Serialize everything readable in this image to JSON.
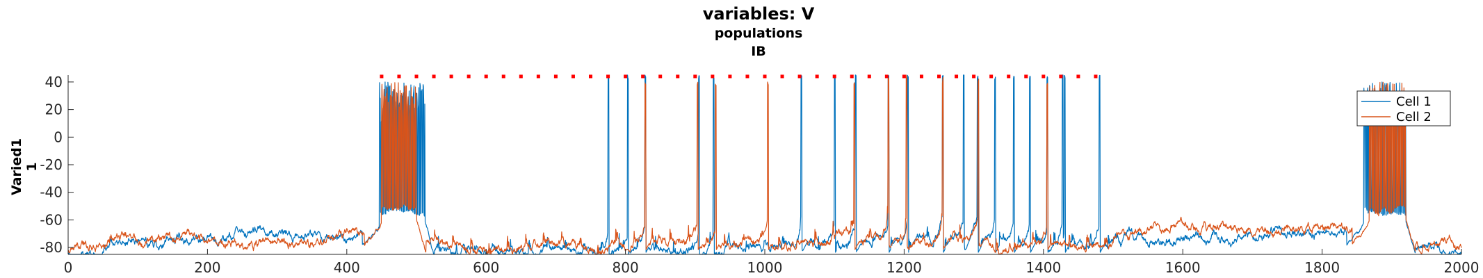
{
  "chart_data": {
    "type": "line",
    "title": "variables: V",
    "subtitle_lines": [
      "populations",
      "IB"
    ],
    "ylabel_lines": [
      "Varied1",
      "1"
    ],
    "xlabel": "",
    "xlim": [
      0,
      2000
    ],
    "ylim": [
      -85,
      45
    ],
    "x_ticks": [
      0,
      200,
      400,
      600,
      800,
      1000,
      1200,
      1400,
      1600,
      1800,
      2000
    ],
    "y_ticks": [
      -80,
      -60,
      -40,
      -20,
      0,
      20,
      40
    ],
    "grid": false,
    "legend_position": "top-right",
    "series": [
      {
        "name": "Cell 1",
        "color": "#0072BD",
        "baseline_mV": -80,
        "burst_windows": [
          [
            447,
            512
          ],
          [
            1860,
            1920
          ]
        ],
        "burst_plateau_mV": -55,
        "spike_times": [
          775,
          803,
          828,
          905,
          926,
          1052,
          1100,
          1130,
          1177,
          1205,
          1255,
          1285,
          1305,
          1330,
          1357,
          1380,
          1405,
          1427,
          1430,
          1480
        ],
        "spike_peak_mV": 45
      },
      {
        "name": "Cell 2",
        "color": "#D95319",
        "baseline_mV": -78,
        "burst_windows": [
          [
            450,
            500
          ],
          [
            1868,
            1920
          ]
        ],
        "burst_plateau_mV": -52,
        "spike_times": [
          828,
          903,
          929,
          1004,
          1128,
          1177,
          1203,
          1255,
          1306,
          1405
        ],
        "spike_peak_mV": 40
      }
    ],
    "markers": {
      "color": "#FF0000",
      "y_mV": 44,
      "x_start": 450,
      "x_end": 1480,
      "spacing": 25
    }
  }
}
